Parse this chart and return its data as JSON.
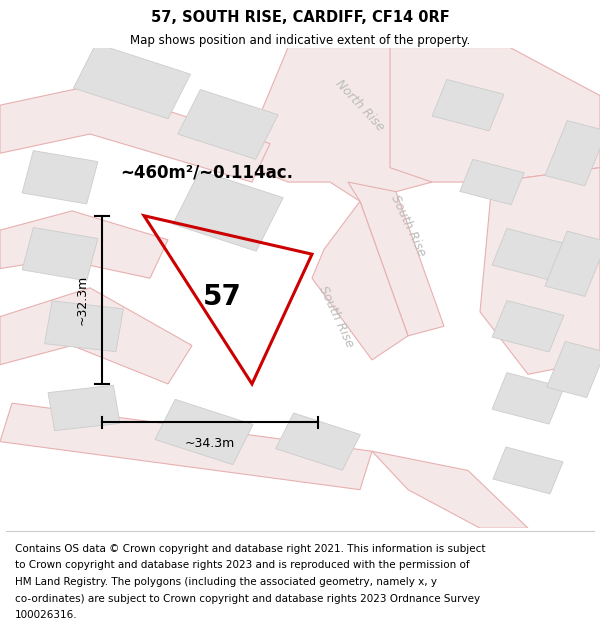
{
  "title": "57, SOUTH RISE, CARDIFF, CF14 0RF",
  "subtitle": "Map shows position and indicative extent of the property.",
  "footer_lines": [
    "Contains OS data © Crown copyright and database right 2021. This information is subject",
    "to Crown copyright and database rights 2023 and is reproduced with the permission of",
    "HM Land Registry. The polygons (including the associated geometry, namely x, y",
    "co-ordinates) are subject to Crown copyright and database rights 2023 Ordnance Survey",
    "100026316."
  ],
  "map_bg": "#ffffff",
  "road_fill": "#f5e8e8",
  "road_outline": "#e8b0b0",
  "building_fill": "#e0e0e0",
  "building_edge": "#cccccc",
  "plot_color": "#cc0000",
  "road_label_color": "#bbbbbb",
  "plot_label": "57",
  "area_label": "~460m²/~0.114ac.",
  "width_label": "~34.3m",
  "height_label": "~32.3m",
  "road_label_1": "North Rise",
  "road_label_2": "South Rise",
  "road_label_3": "South Rise",
  "figsize": [
    6.0,
    6.25
  ],
  "dpi": 100
}
